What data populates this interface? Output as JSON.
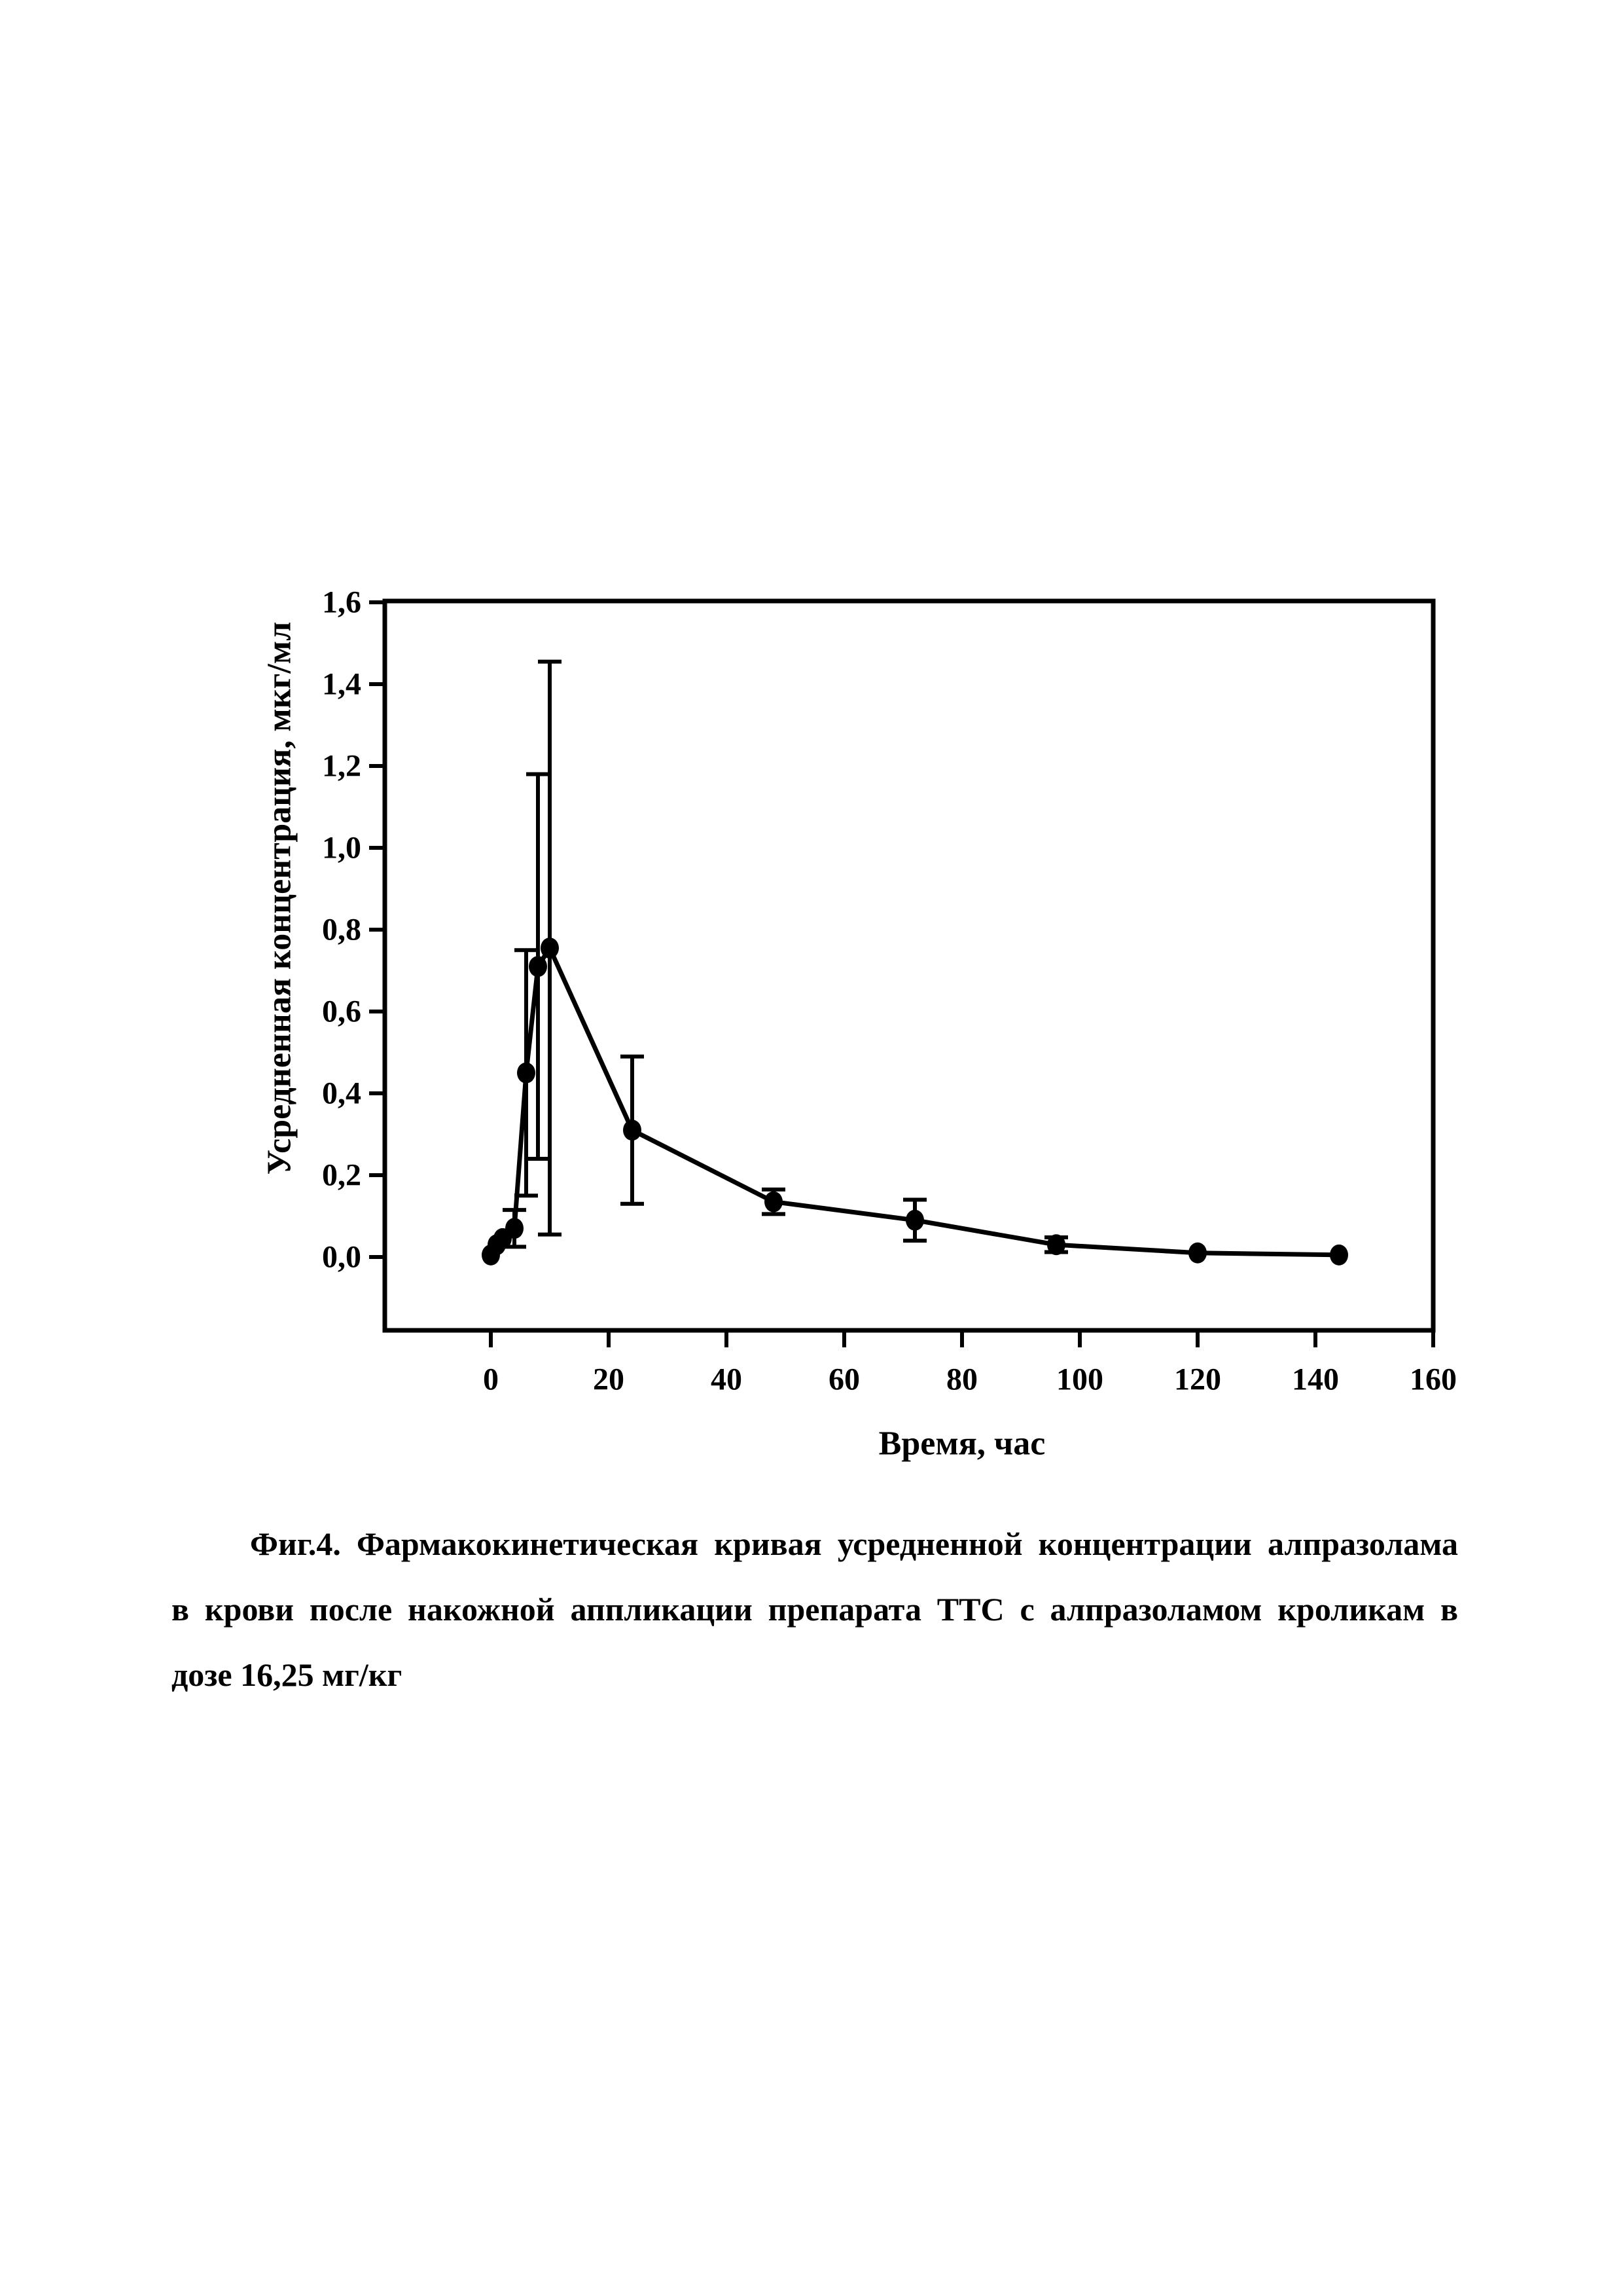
{
  "page": {
    "background": "#ffffff",
    "ink_color": "#000000"
  },
  "chart_data": {
    "type": "line",
    "title": "",
    "xlabel": "Время, час",
    "ylabel": "Усредненная концентрация, мкг/мл",
    "grid": false,
    "legend_position": "none",
    "marker": "filled-circle",
    "error_bars": true,
    "line_color": "#000000",
    "xlim": [
      -17.6,
      160
    ],
    "ylim": [
      -0.18,
      1.6
    ],
    "x_ticks": [
      0,
      20,
      40,
      60,
      80,
      100,
      120,
      140,
      160
    ],
    "x_tick_labels": [
      "0",
      "20",
      "40",
      "60",
      "80",
      "100",
      "120",
      "140",
      "160"
    ],
    "y_ticks": [
      0.0,
      0.2,
      0.4,
      0.6,
      0.8,
      1.0,
      1.2,
      1.4,
      1.6
    ],
    "y_tick_labels": [
      "0,0",
      "0,2",
      "0,4",
      "0,6",
      "0,8",
      "1,0",
      "1,2",
      "1,4",
      "1,6"
    ],
    "series": [
      {
        "name": "Усредненная концентрация алпразолама в крови",
        "x": [
          0,
          1,
          2,
          4,
          6,
          8,
          10,
          24,
          48,
          72,
          96,
          120,
          144
        ],
        "y": [
          0.005,
          0.03,
          0.045,
          0.07,
          0.45,
          0.71,
          0.755,
          0.31,
          0.135,
          0.09,
          0.03,
          0.01,
          0.005
        ],
        "yerr": [
          0,
          0,
          0,
          0.045,
          0.3,
          0.47,
          0.7,
          0.18,
          0.03,
          0.05,
          0.018,
          0,
          0
        ]
      }
    ]
  },
  "caption": {
    "line1": "Фиг.4. Фармакокинетическая кривая усредненной концентрации алпразолама",
    "line2": "в крови после накожной аппликации препарата ТТС с алпразоламом кроликам в",
    "line3": "дозе 16,25 мг/кг"
  }
}
